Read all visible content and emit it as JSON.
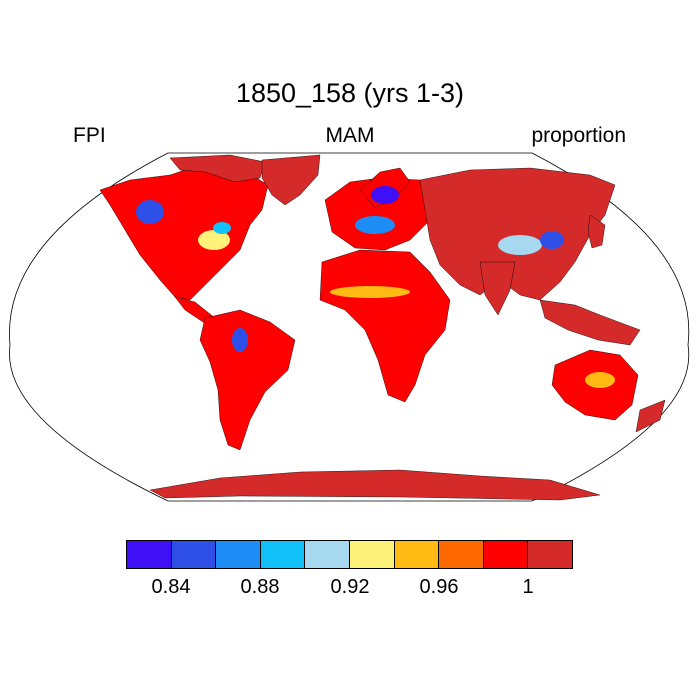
{
  "map": {
    "title": "1850_158 (yrs 1-3)",
    "left_label": "FPI",
    "center_label": "MAM",
    "right_label": "proportion",
    "projection": "Robinson",
    "land_default_color": "#d42a2a",
    "region_colors": {
      "north_america": "#ff0000",
      "south_america": "#ff0000",
      "africa": "#ff0000",
      "australia": "#ff0000",
      "europe": "#ff0000"
    }
  },
  "colorbar": {
    "colors": [
      "#3f10f5",
      "#2e4fe8",
      "#1e8cf5",
      "#12c1f7",
      "#a6d8f0",
      "#fff27a",
      "#ffba14",
      "#ff6a00",
      "#ff0000",
      "#d42a2a"
    ],
    "labels": [
      "0.84",
      "0.88",
      "0.92",
      "0.96",
      "1"
    ]
  }
}
